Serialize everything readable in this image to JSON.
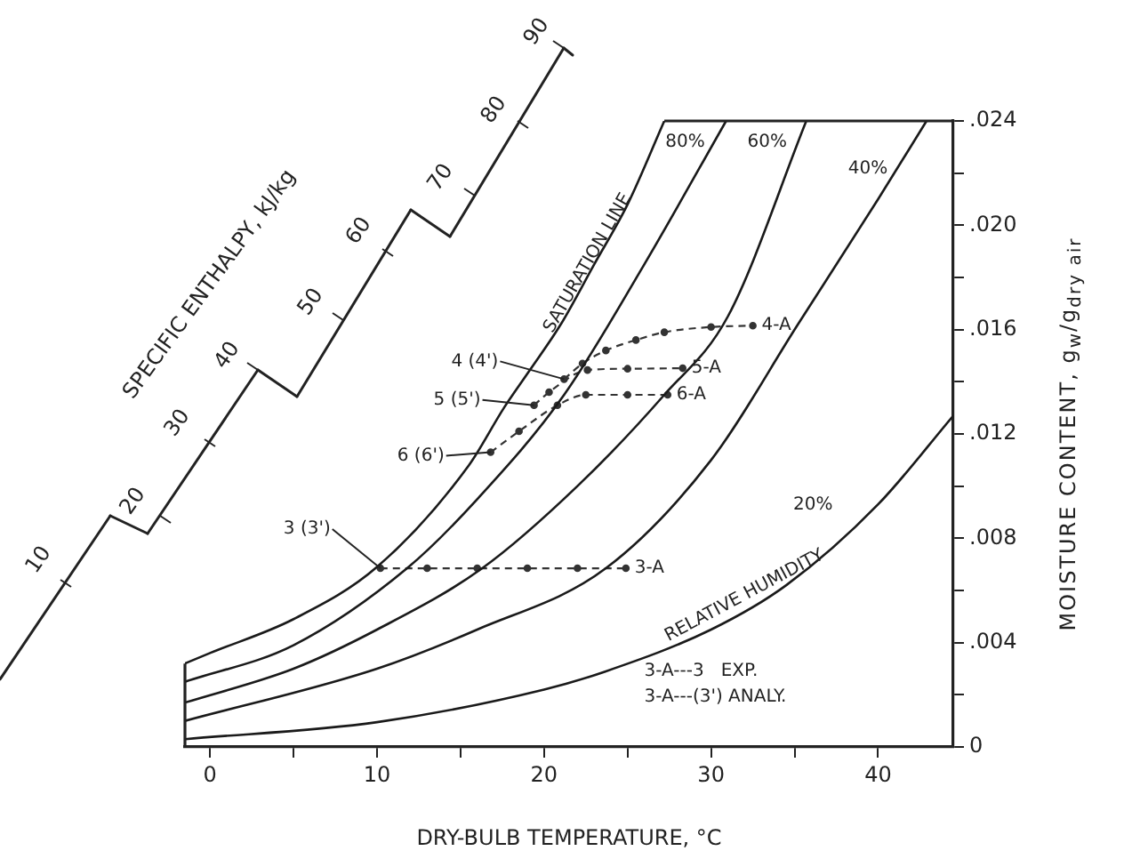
{
  "chart_data": {
    "type": "line",
    "xlabel": "DRY-BULB TEMPERATURE, °C",
    "ylabel": "MOISTURE CONTENT, g$_{w}$/g$_{dry air}$",
    "xlim": [
      -1.5,
      44.5
    ],
    "xticks": [
      0,
      {
        "value": 5,
        "label": null
      },
      10,
      {
        "value": 15,
        "label": null
      },
      20,
      {
        "value": 25,
        "label": null
      },
      30,
      {
        "value": 35,
        "label": null
      },
      40
    ],
    "ylim": [
      0,
      0.024
    ],
    "yticks": [
      0,
      {
        "value": 0.002,
        "label": null
      },
      {
        "value": 0.004,
        "label": ".004"
      },
      {
        "value": 0.006,
        "label": null
      },
      {
        "value": 0.008,
        "label": ".008"
      },
      {
        "value": 0.01,
        "label": null
      },
      {
        "value": 0.012,
        "label": ".012"
      },
      {
        "value": 0.014,
        "label": null
      },
      {
        "value": 0.016,
        "label": ".016"
      },
      {
        "value": 0.018,
        "label": null
      },
      {
        "value": 0.02,
        "label": ".020"
      },
      {
        "value": 0.022,
        "label": null
      },
      {
        "value": 0.024,
        "label": ".024"
      }
    ],
    "grid": false,
    "legend": false,
    "series": [
      {
        "name": "SATURATION LINE",
        "color": "#1a1a1a",
        "marker": "none",
        "line_style": "solid",
        "x": [
          -1.5,
          0,
          5,
          10,
          15.5,
          17.6,
          19.1,
          21,
          23,
          25,
          27.2
        ],
        "values": [
          0.0032,
          0.0036,
          0.0049,
          0.0069,
          0.0108,
          0.013,
          0.0144,
          0.0162,
          0.0185,
          0.0208,
          0.024
        ]
      },
      {
        "name": "80%",
        "color": "#1a1a1a",
        "marker": "none",
        "line_style": "solid",
        "x": [
          -1.5,
          5,
          11.8,
          16,
          21.2,
          26,
          30.9
        ],
        "values": [
          0.0025,
          0.0039,
          0.00685,
          0.0095,
          0.0135,
          0.0185,
          0.024
        ]
      },
      {
        "name": "60%",
        "color": "#1a1a1a",
        "marker": "none",
        "line_style": "solid",
        "x": [
          -1.5,
          5,
          10,
          16.3,
          22,
          27.2,
          31,
          35.7
        ],
        "values": [
          0.0017,
          0.003,
          0.0045,
          0.00685,
          0.01,
          0.0135,
          0.0165,
          0.024
        ]
      },
      {
        "name": "40%",
        "color": "#1a1a1a",
        "marker": "none",
        "line_style": "solid",
        "x": [
          -1.5,
          10,
          16,
          23.7,
          30,
          35.2,
          40,
          42.9
        ],
        "values": [
          0.001,
          0.003,
          0.0045,
          0.00685,
          0.011,
          0.0162,
          0.021,
          0.024
        ]
      },
      {
        "name": "20%",
        "color": "#1a1a1a",
        "marker": "none",
        "line_style": "solid",
        "x": [
          -1.5,
          10,
          20,
          23.7,
          30,
          34.5,
          40,
          44.5
        ],
        "values": [
          0.0003,
          0.00095,
          0.0022,
          0.0029,
          0.0045,
          0.0062,
          0.0093,
          0.0127
        ]
      },
      {
        "color": "#333333",
        "marker": "circle",
        "line_style": "dashed",
        "x": [
          10.2,
          13,
          16,
          19,
          22,
          24.9
        ],
        "values": [
          0.00685,
          0.00685,
          0.00685,
          0.00685,
          0.00685,
          0.00685
        ]
      },
      {
        "color": "#333333",
        "marker": "circle",
        "line_style": "dashed",
        "x": [
          21.2,
          22.3,
          23.7,
          25.5,
          27.2,
          30,
          32.5
        ],
        "values": [
          0.0141,
          0.0147,
          0.0152,
          0.0156,
          0.0159,
          0.0161,
          0.01615
        ]
      },
      {
        "color": "#333333",
        "marker": "circle",
        "line_style": "dashed",
        "x": [
          19.4,
          20.3,
          22.6,
          25,
          28.3
        ],
        "values": [
          0.0131,
          0.0136,
          0.01445,
          0.0145,
          0.01452
        ]
      },
      {
        "color": "#333333",
        "marker": "circle",
        "line_style": "dashed",
        "x": [
          16.8,
          18.5,
          20.8,
          22.5,
          25,
          27.4
        ],
        "values": [
          0.0113,
          0.0121,
          0.0131,
          0.0135,
          0.0135,
          0.0135
        ]
      }
    ],
    "annotations": [
      "SPECIFIC ENTHALPY, kJ/kg",
      "10",
      "20",
      "30",
      "40",
      "50",
      "60",
      "70",
      "80",
      "90",
      "RELATIVE HUMIDITY",
      "3-A---3   EXP.",
      "3-A---(3') ANALY.",
      {
        "text": "3 (3')",
        "x": 10.2,
        "y": 0.00685
      },
      {
        "text": "3-A",
        "x": 24.9,
        "y": 0.00685
      },
      {
        "text": "4 (4')",
        "x": 21.2,
        "y": 0.0141
      },
      {
        "text": "4-A",
        "x": 32.5,
        "y": 0.01615
      },
      {
        "text": "5 (5')",
        "x": 19.4,
        "y": 0.0131
      },
      {
        "text": "5-A",
        "x": 28.3,
        "y": 0.01452
      },
      {
        "text": "6 (6')",
        "x": 16.8,
        "y": 0.0113
      },
      {
        "text": "6-A",
        "x": 27.4,
        "y": 0.0135
      }
    ]
  }
}
